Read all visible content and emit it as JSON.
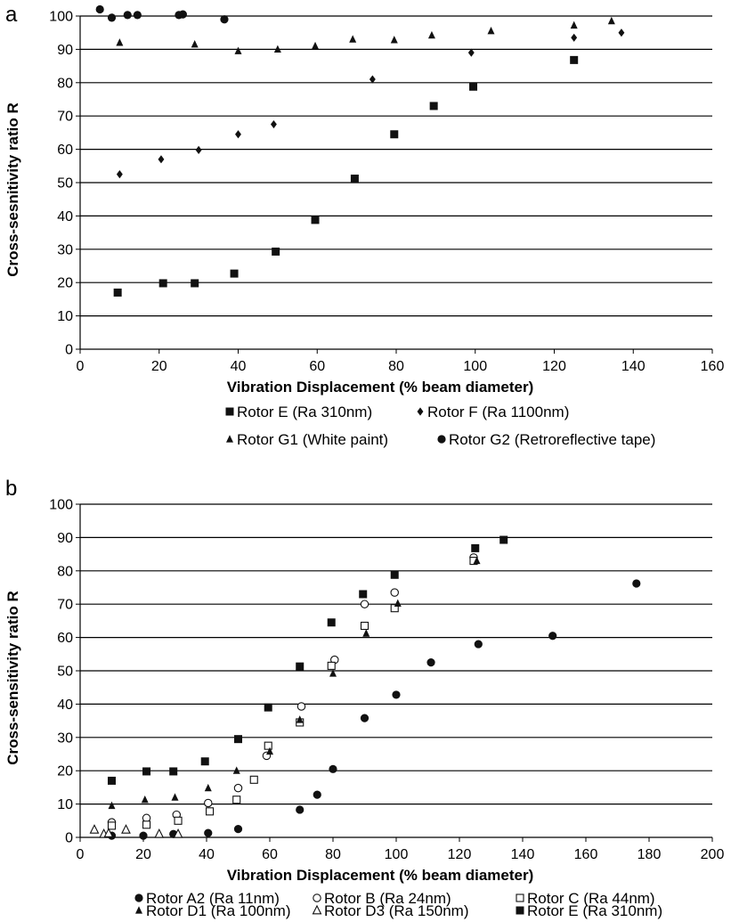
{
  "chart_data": [
    {
      "panel": "a",
      "type": "scatter",
      "xlabel": "Vibration Displacement (% beam diameter)",
      "ylabel": "Cross-sesnitivity ratio R",
      "xlim": [
        0,
        160
      ],
      "ylim": [
        0,
        100
      ],
      "xticks": [
        "0",
        "20",
        "40",
        "60",
        "80",
        "100",
        "120",
        "140",
        "160"
      ],
      "yticks": [
        "0",
        "10",
        "20",
        "30",
        "40",
        "50",
        "60",
        "70",
        "80",
        "90",
        "100"
      ],
      "grid": "horizontal",
      "legend_position": "bottom",
      "series": [
        {
          "name": "Rotor E (Ra 310nm)",
          "marker": "square-filled",
          "points": [
            [
              9.5,
              17
            ],
            [
              21,
              19.8
            ],
            [
              29,
              19.8
            ],
            [
              39,
              22.7
            ],
            [
              49.5,
              29.3
            ],
            [
              59.5,
              38.8
            ],
            [
              69.5,
              51.2
            ],
            [
              79.5,
              64.5
            ],
            [
              89.5,
              73
            ],
            [
              99.5,
              78.8
            ],
            [
              125,
              86.8
            ]
          ]
        },
        {
          "name": "Rotor F (Ra 1100nm)",
          "marker": "diamond-filled",
          "points": [
            [
              10,
              52.5
            ],
            [
              20.5,
              57
            ],
            [
              30,
              59.8
            ],
            [
              40,
              64.5
            ],
            [
              49,
              67.5
            ],
            [
              74,
              81
            ],
            [
              99,
              89
            ],
            [
              125,
              93.5
            ],
            [
              137,
              95
            ]
          ]
        },
        {
          "name": "Rotor G1 (White paint)",
          "marker": "triangle-filled",
          "points": [
            [
              10,
              92
            ],
            [
              29,
              91.5
            ],
            [
              40,
              89.5
            ],
            [
              50,
              90
            ],
            [
              59.5,
              91
            ],
            [
              69,
              93
            ],
            [
              79.5,
              92.8
            ],
            [
              89,
              94.2
            ],
            [
              104,
              95.5
            ],
            [
              125,
              97.2
            ],
            [
              134.5,
              98.5
            ]
          ]
        },
        {
          "name": "Rotor G2 (Retroreflective tape)",
          "marker": "circle-filled",
          "points": [
            [
              5,
              102
            ],
            [
              8,
              99.5
            ],
            [
              12,
              100.3
            ],
            [
              14.5,
              100.3
            ],
            [
              25,
              100.3
            ],
            [
              26,
              100.5
            ],
            [
              36.5,
              99
            ]
          ]
        }
      ]
    },
    {
      "panel": "b",
      "type": "scatter",
      "xlabel": "Vibration Displacement (% beam diameter)",
      "ylabel": "Cross-sensitivity ratio R",
      "xlim": [
        0,
        200
      ],
      "ylim": [
        0,
        100
      ],
      "xticks": [
        "0",
        "20",
        "40",
        "60",
        "80",
        "100",
        "120",
        "140",
        "160",
        "180",
        "200"
      ],
      "yticks": [
        "0",
        "10",
        "20",
        "30",
        "40",
        "50",
        "60",
        "70",
        "80",
        "90",
        "100"
      ],
      "grid": "horizontal",
      "legend_position": "bottom",
      "series": [
        {
          "name": "Rotor A2 (Ra 11nm)",
          "marker": "circle-filled",
          "points": [
            [
              10,
              0.5
            ],
            [
              20,
              0.5
            ],
            [
              29.5,
              1
            ],
            [
              40.5,
              1.3
            ],
            [
              50,
              2.5
            ],
            [
              69.5,
              8.3
            ],
            [
              75,
              12.8
            ],
            [
              80,
              20.5
            ],
            [
              90,
              35.8
            ],
            [
              100,
              42.8
            ],
            [
              111,
              52.5
            ],
            [
              126,
              58
            ],
            [
              149.5,
              60.5
            ],
            [
              176,
              76.2
            ]
          ]
        },
        {
          "name": "Rotor B (Ra 24nm)",
          "marker": "circle-open",
          "points": [
            [
              10,
              4.5
            ],
            [
              21,
              5.8
            ],
            [
              30.5,
              6.8
            ],
            [
              40.5,
              10.3
            ],
            [
              50,
              14.8
            ],
            [
              59,
              24.5
            ],
            [
              70,
              39.3
            ],
            [
              80.5,
              53.3
            ],
            [
              90,
              70
            ],
            [
              99.5,
              73.5
            ],
            [
              124.5,
              84
            ]
          ]
        },
        {
          "name": "Rotor C (Ra 44nm)",
          "marker": "square-open",
          "points": [
            [
              10,
              3.5
            ],
            [
              21,
              3.8
            ],
            [
              31,
              5
            ],
            [
              41,
              7.8
            ],
            [
              49.5,
              11.3
            ],
            [
              55,
              17.3
            ],
            [
              59.5,
              27.5
            ],
            [
              69.5,
              34.5
            ],
            [
              79.5,
              51.5
            ],
            [
              90,
              63.5
            ],
            [
              99.5,
              68.8
            ],
            [
              124.5,
              83
            ]
          ]
        },
        {
          "name": "Rotor D1 (Ra 100nm)",
          "marker": "triangle-filled",
          "points": [
            [
              10,
              9.5
            ],
            [
              20.5,
              11.3
            ],
            [
              30,
              12
            ],
            [
              40.5,
              14.8
            ],
            [
              49.5,
              20
            ],
            [
              60,
              25.8
            ],
            [
              69.5,
              35.3
            ],
            [
              80,
              49.2
            ],
            [
              90.5,
              61.2
            ],
            [
              100.5,
              70.2
            ],
            [
              125.5,
              83
            ]
          ]
        },
        {
          "name": "Rotor D3 (Ra 150nm)",
          "marker": "triangle-open",
          "points": [
            [
              4.5,
              2.3
            ],
            [
              7.5,
              1
            ],
            [
              9,
              1.2
            ],
            [
              14.5,
              2.3
            ],
            [
              25,
              1
            ],
            [
              31,
              1
            ]
          ]
        },
        {
          "name": "Rotor E (Ra 310nm)",
          "marker": "square-filled",
          "points": [
            [
              10,
              17
            ],
            [
              21,
              19.8
            ],
            [
              29.5,
              19.8
            ],
            [
              39.5,
              22.8
            ],
            [
              50,
              29.5
            ],
            [
              59.5,
              39
            ],
            [
              69.5,
              51.3
            ],
            [
              79.5,
              64.5
            ],
            [
              89.5,
              73
            ],
            [
              99.5,
              78.8
            ],
            [
              125,
              86.8
            ],
            [
              134,
              89.3
            ]
          ]
        }
      ]
    }
  ]
}
